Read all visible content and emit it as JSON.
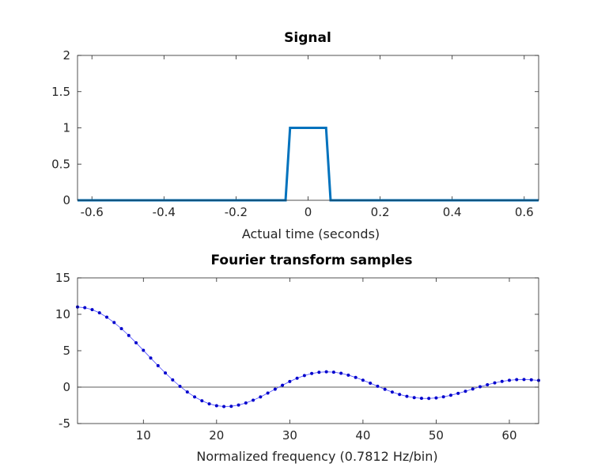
{
  "chart_data": [
    {
      "type": "line",
      "title": "Signal",
      "xlabel": "Actual time (seconds)",
      "ylabel": "",
      "xlim": [
        -0.64,
        0.64
      ],
      "ylim": [
        0,
        2
      ],
      "xticks": [
        -0.6,
        -0.4,
        -0.2,
        0,
        0.2,
        0.4,
        0.6
      ],
      "xtick_labels": [
        "-0.6",
        "-0.4",
        "-0.2",
        "0",
        "0.2",
        "0.4",
        "0.6"
      ],
      "yticks": [
        0,
        0.5,
        1,
        1.5,
        2
      ],
      "ytick_labels": [
        "0",
        "0.5",
        "1",
        "1.5",
        "2"
      ],
      "grid": false,
      "color": "#0072BD",
      "series": [
        {
          "x": [
            -0.64,
            -0.0625,
            -0.05,
            0.05,
            0.0625,
            0.64
          ],
          "y": [
            0,
            0,
            1,
            1,
            0,
            0
          ]
        }
      ]
    },
    {
      "type": "line",
      "title": "Fourier transform samples",
      "xlabel": "Normalized frequency (0.7812 Hz/bin)",
      "ylabel": "",
      "xlim": [
        1,
        64
      ],
      "ylim": [
        -5,
        15
      ],
      "xticks": [
        10,
        20,
        30,
        40,
        50,
        60
      ],
      "xtick_labels": [
        "10",
        "20",
        "30",
        "40",
        "50",
        "60"
      ],
      "yticks": [
        -5,
        0,
        5,
        10,
        15
      ],
      "ytick_labels": [
        "-5",
        "0",
        "5",
        "10",
        "15"
      ],
      "grid": false,
      "line_color": "#4D4DFF",
      "marker_color": "#0000CC",
      "series": [
        {
          "x": [
            1,
            2,
            3,
            4,
            5,
            6,
            7,
            8,
            9,
            10,
            11,
            12,
            13,
            14,
            15,
            16,
            17,
            18,
            19,
            20,
            21,
            22,
            23,
            24,
            25,
            26,
            27,
            28,
            29,
            30,
            31,
            32,
            33,
            34,
            35,
            36,
            37,
            38,
            39,
            40,
            41,
            42,
            43,
            44,
            45,
            46,
            47,
            48,
            49,
            50,
            51,
            52,
            53,
            54,
            55,
            56,
            57,
            58,
            59,
            60,
            61,
            62,
            63,
            64
          ],
          "y": [
            11.0,
            10.91,
            10.64,
            10.2,
            9.6,
            8.87,
            8.03,
            7.09,
            6.09,
            5.05,
            3.99,
            2.95,
            1.94,
            0.99,
            0.11,
            -0.67,
            -1.34,
            -1.88,
            -2.29,
            -2.55,
            -2.66,
            -2.63,
            -2.46,
            -2.18,
            -1.8,
            -1.34,
            -0.82,
            -0.28,
            0.26,
            0.77,
            1.22,
            1.59,
            1.87,
            2.04,
            2.1,
            2.05,
            1.9,
            1.65,
            1.33,
            0.95,
            0.54,
            0.12,
            -0.3,
            -0.68,
            -1.0,
            -1.26,
            -1.44,
            -1.54,
            -1.55,
            -1.48,
            -1.33,
            -1.12,
            -0.86,
            -0.57,
            -0.26,
            0.05,
            0.33,
            0.58,
            0.79,
            0.94,
            1.03,
            1.05,
            1.01,
            0.92
          ]
        }
      ]
    }
  ]
}
